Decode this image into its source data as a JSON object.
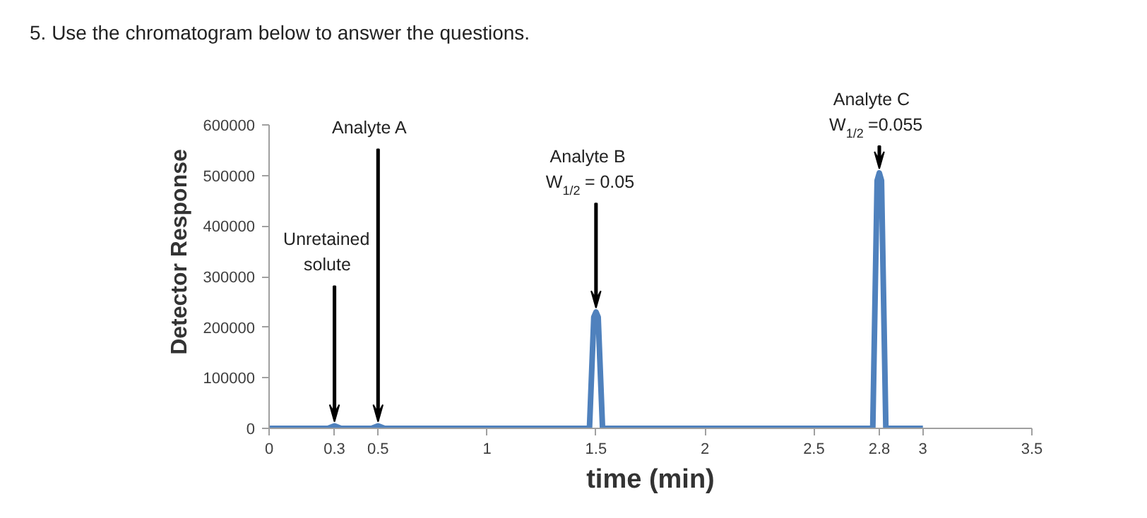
{
  "chart_data": {
    "type": "line",
    "title": "5. Use the chromatogram below to answer the questions.",
    "xlabel": "time (min)",
    "ylabel": "Detector Response",
    "x": [
      0,
      0.27,
      0.3,
      0.33,
      0.47,
      0.5,
      0.53,
      1.47,
      1.49,
      1.5,
      1.51,
      1.53,
      2.77,
      2.79,
      2.8,
      2.81,
      2.83,
      3.0
    ],
    "series": [
      {
        "color": "#4f81bd",
        "values": [
          0,
          0,
          5000,
          0,
          0,
          5000,
          0,
          0,
          220000,
          230000,
          220000,
          0,
          0,
          490000,
          505000,
          490000,
          0,
          0
        ]
      }
    ],
    "xlim": [
      0,
      3.5
    ],
    "ylim": [
      0,
      600000
    ],
    "xticks": [
      0,
      0.3,
      0.5,
      1,
      1.5,
      2,
      2.5,
      2.8,
      3,
      3.5
    ],
    "yticks": [
      0,
      100000,
      200000,
      300000,
      400000,
      500000,
      600000
    ],
    "grid": false,
    "marker": "none",
    "line_style": "solid",
    "annotations": [
      "Unretained\nsolute",
      "Analyte A",
      "Analyte B\nW$_{1/2}$= 0.05",
      "Analyte C\nW$_{1/2}$=0.055"
    ]
  }
}
